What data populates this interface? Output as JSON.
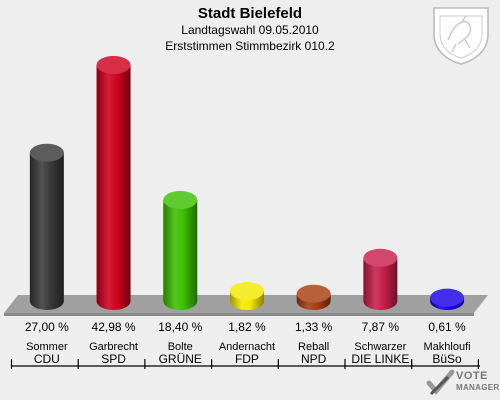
{
  "header": {
    "title": "Stadt Bielefeld",
    "subtitle": "Landtagswahl 09.05.2010",
    "subtitle2": "Erststimmen Stimmbezirk 010.2"
  },
  "branding": {
    "line1": "VOTE",
    "line2": "MANAGER"
  },
  "chart_data": {
    "type": "bar",
    "title": "Stadt Bielefeld",
    "categories": [
      "Sommer",
      "Garbrecht",
      "Bolte",
      "Andernacht",
      "Reball",
      "Schwarzer",
      "Makhloufi"
    ],
    "parties": [
      "CDU",
      "SPD",
      "GRÜNE",
      "FDP",
      "NPD",
      "DIE LINKE",
      "BüSo"
    ],
    "values": [
      27.0,
      42.98,
      18.4,
      1.82,
      1.33,
      7.87,
      0.61
    ],
    "value_labels": [
      "27,00 %",
      "42,98 %",
      "18,40 %",
      "1,82 %",
      "1,33 %",
      "7,87 %",
      "0,61 %"
    ],
    "colors": [
      "#3a3a3a",
      "#d0001e",
      "#3cc000",
      "#f4e800",
      "#a83c10",
      "#c81e4a",
      "#1800e8"
    ],
    "ylim": [
      0,
      45
    ],
    "grid": false,
    "legend": "none"
  }
}
